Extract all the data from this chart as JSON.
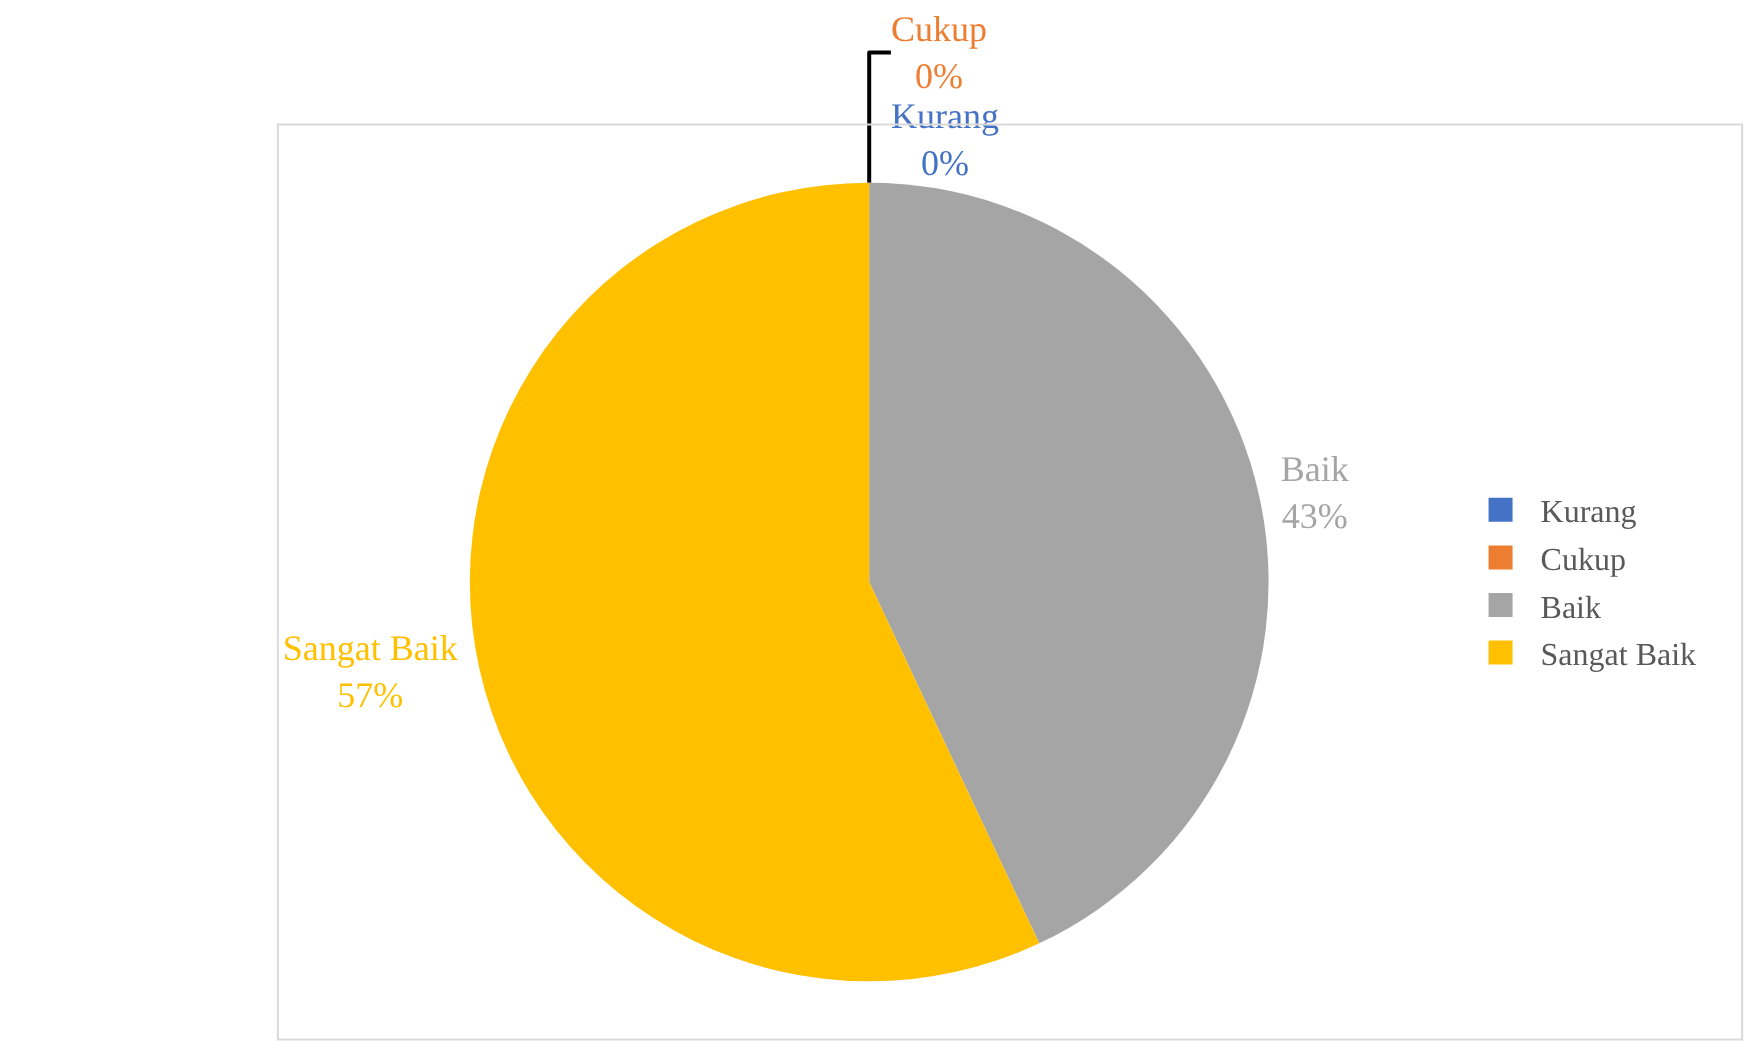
{
  "chart_data": {
    "type": "pie",
    "categories": [
      "Kurang",
      "Cukup",
      "Baik",
      "Sangat Baik"
    ],
    "values": [
      0,
      0,
      43,
      57
    ],
    "value_labels": [
      "0%",
      "0%",
      "43%",
      "57%"
    ],
    "colors": [
      "#4472c4",
      "#ed7d31",
      "#a5a5a5",
      "#ffc000"
    ],
    "legend": "right"
  }
}
